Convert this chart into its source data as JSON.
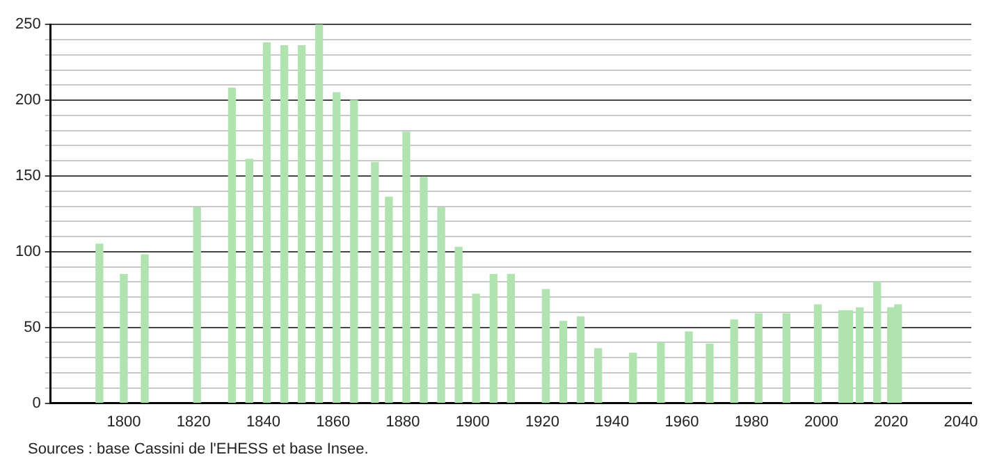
{
  "chart_data": {
    "type": "bar",
    "x": [
      1793,
      1800,
      1806,
      1821,
      1831,
      1836,
      1841,
      1846,
      1851,
      1856,
      1861,
      1866,
      1872,
      1876,
      1881,
      1886,
      1891,
      1896,
      1901,
      1906,
      1911,
      1921,
      1926,
      1931,
      1936,
      1946,
      1954,
      1962,
      1968,
      1975,
      1982,
      1990,
      1999,
      2006,
      2008,
      2011,
      2016,
      2020,
      2022
    ],
    "values": [
      105,
      85,
      98,
      129,
      208,
      161,
      238,
      236,
      236,
      250,
      205,
      200,
      159,
      136,
      179,
      149,
      129,
      103,
      72,
      85,
      85,
      75,
      54,
      57,
      36,
      33,
      40,
      47,
      39,
      55,
      59,
      59,
      65,
      61,
      61,
      63,
      80,
      63,
      65
    ],
    "color": "#b0e3b0",
    "xlim": [
      1779,
      2043
    ],
    "xticks": [
      1800,
      1820,
      1840,
      1860,
      1880,
      1900,
      1920,
      1940,
      1960,
      1980,
      2000,
      2020,
      2040
    ],
    "ylim": [
      0,
      250
    ],
    "yticks": [
      0,
      {
        "value": 10,
        "label": null
      },
      {
        "value": 20,
        "label": null
      },
      {
        "value": 30,
        "label": null
      },
      {
        "value": 40,
        "label": null
      },
      50,
      {
        "value": 60,
        "label": null
      },
      {
        "value": 70,
        "label": null
      },
      {
        "value": 80,
        "label": null
      },
      {
        "value": 90,
        "label": null
      },
      100,
      {
        "value": 110,
        "label": null
      },
      {
        "value": 120,
        "label": null
      },
      {
        "value": 130,
        "label": null
      },
      {
        "value": 140,
        "label": null
      },
      150,
      {
        "value": 160,
        "label": null
      },
      {
        "value": 170,
        "label": null
      },
      {
        "value": 180,
        "label": null
      },
      {
        "value": 190,
        "label": null
      },
      200,
      {
        "value": 210,
        "label": null
      },
      {
        "value": 220,
        "label": null
      },
      {
        "value": 230,
        "label": null
      },
      {
        "value": 240,
        "label": null
      },
      250
    ],
    "grid": "y",
    "legend": false,
    "annotations": [
      "Sources : base Cassini de l'EHESS et base Insee."
    ]
  }
}
